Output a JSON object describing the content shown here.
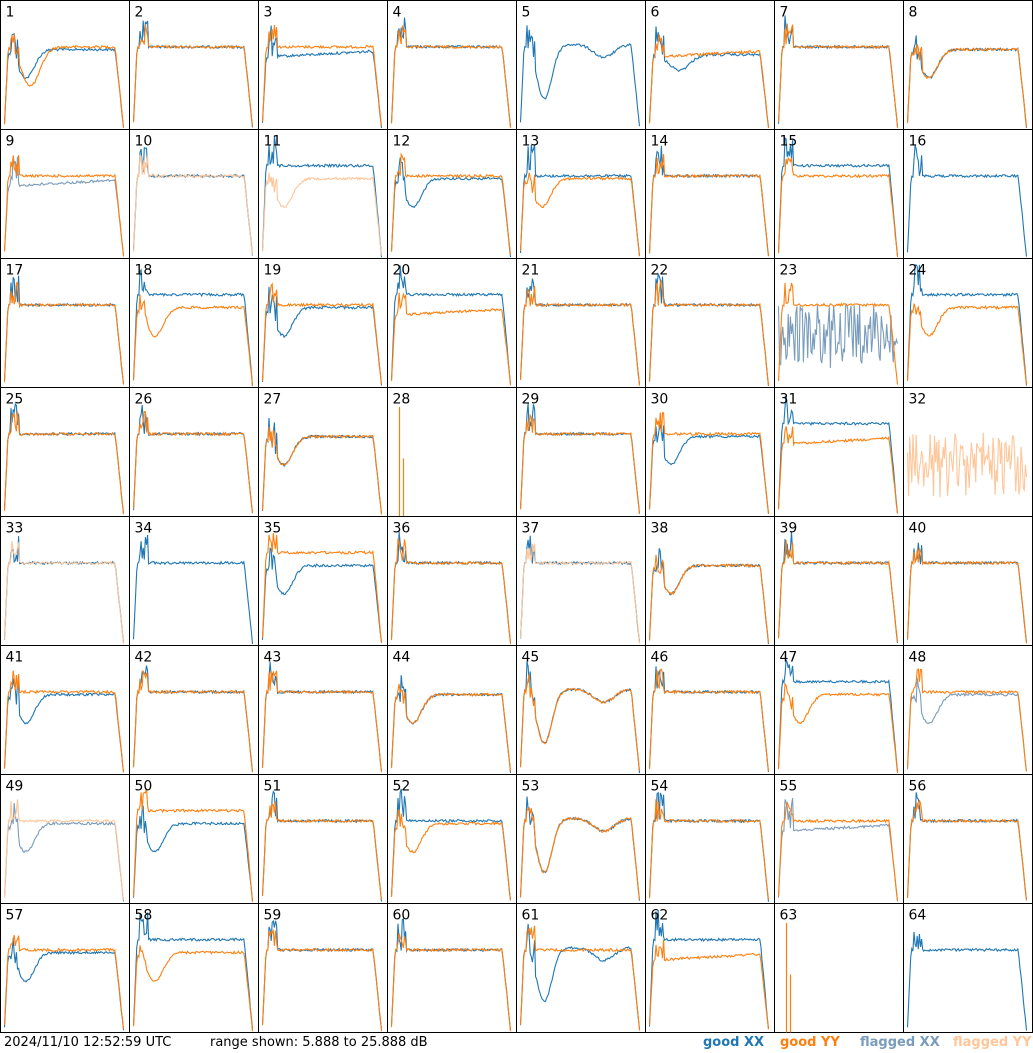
{
  "chart_data": {
    "type": "line",
    "layout": "8x8 small multiples",
    "x_axis": "frequency channel",
    "y_range_db": [
      5.888,
      25.888
    ],
    "grid": false,
    "panel_labels": [
      "1",
      "2",
      "3",
      "4",
      "5",
      "6",
      "7",
      "8",
      "9",
      "10",
      "11",
      "12",
      "13",
      "14",
      "15",
      "16",
      "17",
      "18",
      "19",
      "20",
      "21",
      "22",
      "23",
      "24",
      "25",
      "26",
      "27",
      "28",
      "29",
      "30",
      "31",
      "32",
      "33",
      "34",
      "35",
      "36",
      "37",
      "38",
      "39",
      "40",
      "41",
      "42",
      "43",
      "44",
      "45",
      "46",
      "47",
      "48",
      "49",
      "50",
      "51",
      "52",
      "53",
      "54",
      "55",
      "56",
      "57",
      "58",
      "59",
      "60",
      "61",
      "62",
      "63",
      "64"
    ],
    "colors": {
      "good_xx": "#1f77b4",
      "good_yy": "#ff7f0e",
      "flagged_xx": "#7a9cbc",
      "flagged_yy": "#ffc699"
    },
    "legend": [
      "good XX",
      "good YY",
      "flagged XX",
      "flagged YY"
    ],
    "legend_placement": "bottom-right",
    "panels_note_shapes": "per-panel spectrum shape codes",
    "panels": [
      {
        "xx": "dip",
        "yy": "dip2"
      },
      {
        "xx": "flat",
        "yy": "flat"
      },
      {
        "xx": "low",
        "yy": "flat"
      },
      {
        "xx": "flat",
        "yy": "flat"
      },
      {
        "xx": "deep",
        "yy": "none"
      },
      {
        "xx": "dipflat",
        "yy": "low"
      },
      {
        "xx": "flat",
        "yy": "flat"
      },
      {
        "xx": "dip",
        "yy": "dip"
      },
      {
        "xx": "flaggedlow",
        "yy": "flat"
      },
      {
        "xx": "flat",
        "yy": "flaggedflat"
      },
      {
        "xx": "high",
        "yy": "flaggeddip"
      },
      {
        "xx": "dip",
        "yy": "flat"
      },
      {
        "xx": "flat",
        "yy": "dip"
      },
      {
        "xx": "flat",
        "yy": "flat"
      },
      {
        "xx": "high",
        "yy": "flat"
      },
      {
        "xx": "flat",
        "yy": "none"
      },
      {
        "xx": "flat",
        "yy": "flat"
      },
      {
        "xx": "high",
        "yy": "dip"
      },
      {
        "xx": "dip",
        "yy": "flat"
      },
      {
        "xx": "high",
        "yy": "low"
      },
      {
        "xx": "flat",
        "yy": "flat"
      },
      {
        "xx": "flat",
        "yy": "flat"
      },
      {
        "xx": "flaggednoise",
        "yy": "flat"
      },
      {
        "xx": "high",
        "yy": "dip"
      },
      {
        "xx": "flat",
        "yy": "flat"
      },
      {
        "xx": "flat",
        "yy": "flat"
      },
      {
        "xx": "dip",
        "yy": "dip"
      },
      {
        "xx": "none",
        "yy": "spike"
      },
      {
        "xx": "flat",
        "yy": "flat"
      },
      {
        "xx": "dip",
        "yy": "flat"
      },
      {
        "xx": "high",
        "yy": "low"
      },
      {
        "xx": "none",
        "yy": "flaggednoise"
      },
      {
        "xx": "flat",
        "yy": "flaggedflat"
      },
      {
        "xx": "flat",
        "yy": "none"
      },
      {
        "xx": "dip",
        "yy": "high"
      },
      {
        "xx": "flat",
        "yy": "flat"
      },
      {
        "xx": "flat",
        "yy": "flaggedflat"
      },
      {
        "xx": "dip",
        "yy": "dip"
      },
      {
        "xx": "flat",
        "yy": "flat"
      },
      {
        "xx": "flat",
        "yy": "flat"
      },
      {
        "xx": "dip",
        "yy": "flat"
      },
      {
        "xx": "flat",
        "yy": "flat"
      },
      {
        "xx": "flat",
        "yy": "flat"
      },
      {
        "xx": "dip",
        "yy": "dip"
      },
      {
        "xx": "deep",
        "yy": "deep"
      },
      {
        "xx": "flat",
        "yy": "flat"
      },
      {
        "xx": "high",
        "yy": "dip"
      },
      {
        "xx": "flaggeddip",
        "yy": "flat"
      },
      {
        "xx": "flaggeddip",
        "yy": "flaggedflat"
      },
      {
        "xx": "dip",
        "yy": "high"
      },
      {
        "xx": "flat",
        "yy": "flat"
      },
      {
        "xx": "flat",
        "yy": "dip"
      },
      {
        "xx": "deep",
        "yy": "deep"
      },
      {
        "xx": "flat",
        "yy": "flat"
      },
      {
        "xx": "flaggedlow",
        "yy": "flat"
      },
      {
        "xx": "flat",
        "yy": "flat"
      },
      {
        "xx": "dip",
        "yy": "flat"
      },
      {
        "xx": "high",
        "yy": "dip"
      },
      {
        "xx": "flat",
        "yy": "flat"
      },
      {
        "xx": "flat",
        "yy": "flat"
      },
      {
        "xx": "deep",
        "yy": "flat"
      },
      {
        "xx": "high",
        "yy": "low"
      },
      {
        "xx": "none",
        "yy": "spike"
      },
      {
        "xx": "flat",
        "yy": "none"
      }
    ]
  },
  "footer": {
    "timestamp": "2024/11/10 12:52:59 UTC",
    "range": "range shown: 5.888 to 25.888 dB",
    "legend": {
      "good_xx": "good XX",
      "good_yy": "good YY",
      "flagged_xx": "flagged XX",
      "flagged_yy": "flagged YY"
    }
  }
}
